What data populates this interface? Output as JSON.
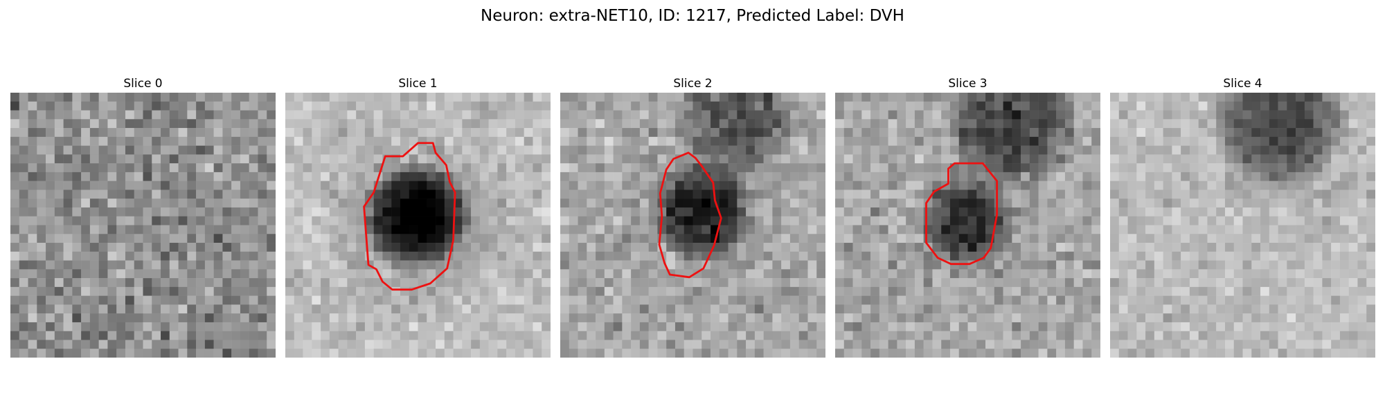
{
  "figure": {
    "title": "Neuron: extra-NET10, ID: 1217, Predicted Label: DVH"
  },
  "slices": [
    {
      "title": "Slice 0",
      "has_outline": false
    },
    {
      "title": "Slice 1",
      "has_outline": true
    },
    {
      "title": "Slice 2",
      "has_outline": true
    },
    {
      "title": "Slice 3",
      "has_outline": true
    },
    {
      "title": "Slice 4",
      "has_outline": false
    }
  ],
  "colors": {
    "outline": "#ee1111",
    "background": "#ffffff"
  }
}
